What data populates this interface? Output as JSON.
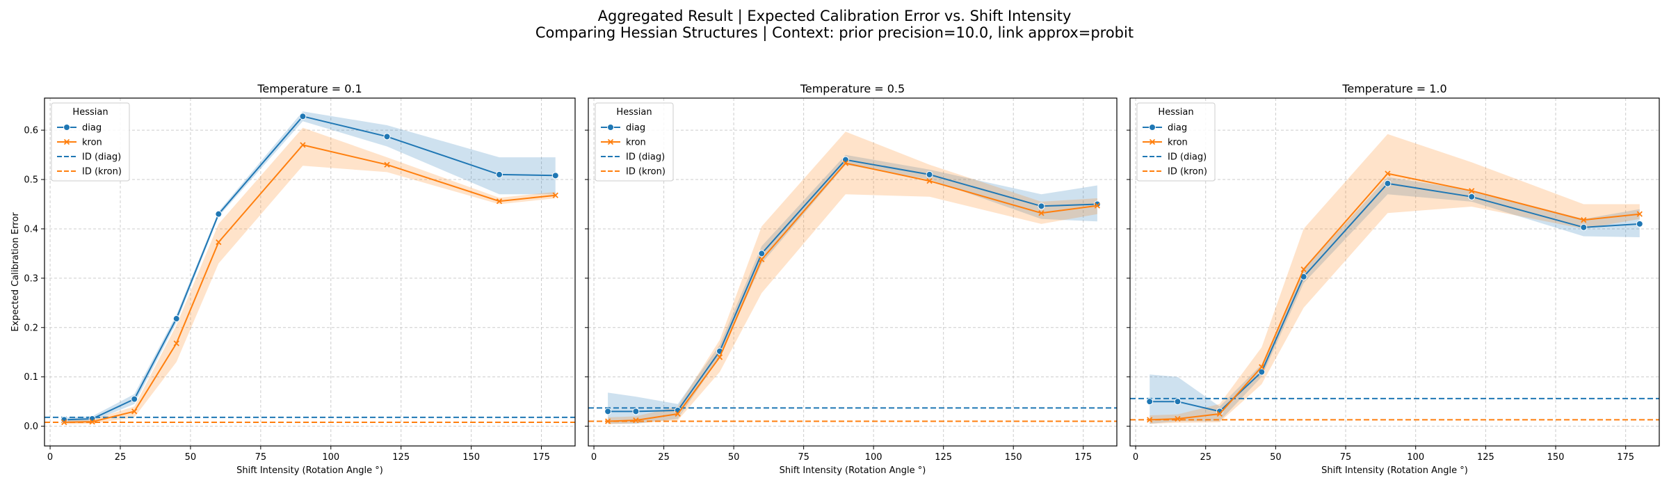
{
  "figure": {
    "title_line1": "Aggregated Result | Expected Calibration Error vs. Shift Intensity",
    "title_line2": "Comparing Hessian Structures | Context: prior precision=10.0, link approx=probit"
  },
  "colors": {
    "diag": "#1f77b4",
    "kron": "#ff7f0e",
    "grid": "#cccccc",
    "axis": "#000000"
  },
  "legend": {
    "title": "Hessian",
    "entries": [
      {
        "label": "diag",
        "style": "line-marker-circle",
        "color": "#1f77b4"
      },
      {
        "label": "kron",
        "style": "line-marker-x",
        "color": "#ff7f0e"
      },
      {
        "label": "ID (diag)",
        "style": "dashed",
        "color": "#1f77b4"
      },
      {
        "label": "ID (kron)",
        "style": "dashed",
        "color": "#ff7f0e"
      }
    ],
    "placement": "upper-left"
  },
  "chart_data": [
    {
      "type": "line",
      "title": "Temperature = 0.1",
      "xlabel": "Shift Intensity (Rotation Angle °)",
      "ylabel": "Expected Calibration Error",
      "xlim": [
        -2,
        187
      ],
      "ylim": [
        -0.04,
        0.665
      ],
      "xticks": [
        0,
        25,
        50,
        75,
        100,
        125,
        150,
        175
      ],
      "yticks": [
        0.0,
        0.1,
        0.2,
        0.3,
        0.4,
        0.5,
        0.6
      ],
      "grid": true,
      "x": [
        5,
        15,
        30,
        45,
        60,
        90,
        120,
        160,
        180
      ],
      "series": [
        {
          "name": "diag",
          "color": "#1f77b4",
          "marker": "circle",
          "values": [
            0.013,
            0.015,
            0.055,
            0.218,
            0.43,
            0.628,
            0.587,
            0.51,
            0.508
          ],
          "lower": [
            0.008,
            0.01,
            0.045,
            0.21,
            0.425,
            0.618,
            0.567,
            0.47,
            0.47
          ],
          "upper": [
            0.018,
            0.02,
            0.065,
            0.226,
            0.435,
            0.638,
            0.61,
            0.545,
            0.545
          ]
        },
        {
          "name": "kron",
          "color": "#ff7f0e",
          "marker": "x",
          "values": [
            0.008,
            0.009,
            0.03,
            0.168,
            0.373,
            0.57,
            0.53,
            0.456,
            0.468
          ],
          "lower": [
            0.004,
            0.005,
            0.018,
            0.13,
            0.33,
            0.528,
            0.515,
            0.45,
            0.462
          ],
          "upper": [
            0.012,
            0.013,
            0.04,
            0.205,
            0.41,
            0.605,
            0.545,
            0.463,
            0.475
          ]
        }
      ],
      "reference_lines": [
        {
          "name": "ID (diag)",
          "y": 0.018,
          "color": "#1f77b4"
        },
        {
          "name": "ID (kron)",
          "y": 0.008,
          "color": "#ff7f0e"
        }
      ]
    },
    {
      "type": "line",
      "title": "Temperature = 0.5",
      "xlabel": "Shift Intensity (Rotation Angle °)",
      "ylabel": "",
      "xlim": [
        -2,
        187
      ],
      "ylim": [
        -0.04,
        0.665
      ],
      "xticks": [
        0,
        25,
        50,
        75,
        100,
        125,
        150,
        175
      ],
      "yticks": [
        0.0,
        0.1,
        0.2,
        0.3,
        0.4,
        0.5,
        0.6
      ],
      "grid": true,
      "x": [
        5,
        15,
        30,
        45,
        60,
        90,
        120,
        160,
        180
      ],
      "series": [
        {
          "name": "diag",
          "color": "#1f77b4",
          "marker": "circle",
          "values": [
            0.03,
            0.03,
            0.032,
            0.152,
            0.35,
            0.54,
            0.51,
            0.446,
            0.45
          ],
          "lower": [
            0.005,
            0.005,
            0.015,
            0.14,
            0.33,
            0.53,
            0.5,
            0.42,
            0.415
          ],
          "upper": [
            0.068,
            0.06,
            0.045,
            0.165,
            0.365,
            0.55,
            0.52,
            0.47,
            0.488
          ]
        },
        {
          "name": "kron",
          "color": "#ff7f0e",
          "marker": "x",
          "values": [
            0.01,
            0.012,
            0.025,
            0.14,
            0.338,
            0.533,
            0.497,
            0.432,
            0.447
          ],
          "lower": [
            0.004,
            0.006,
            0.012,
            0.11,
            0.27,
            0.47,
            0.465,
            0.41,
            0.43
          ],
          "upper": [
            0.018,
            0.02,
            0.04,
            0.175,
            0.405,
            0.597,
            0.53,
            0.455,
            0.462
          ]
        }
      ],
      "reference_lines": [
        {
          "name": "ID (diag)",
          "y": 0.037,
          "color": "#1f77b4"
        },
        {
          "name": "ID (kron)",
          "y": 0.01,
          "color": "#ff7f0e"
        }
      ]
    },
    {
      "type": "line",
      "title": "Temperature = 1.0",
      "xlabel": "Shift Intensity (Rotation Angle °)",
      "ylabel": "",
      "xlim": [
        -2,
        187
      ],
      "ylim": [
        -0.04,
        0.665
      ],
      "xticks": [
        0,
        25,
        50,
        75,
        100,
        125,
        150,
        175
      ],
      "yticks": [
        0.0,
        0.1,
        0.2,
        0.3,
        0.4,
        0.5,
        0.6
      ],
      "grid": true,
      "x": [
        5,
        15,
        30,
        45,
        60,
        90,
        120,
        160,
        180
      ],
      "series": [
        {
          "name": "diag",
          "color": "#1f77b4",
          "marker": "circle",
          "values": [
            0.05,
            0.05,
            0.03,
            0.11,
            0.303,
            0.492,
            0.465,
            0.403,
            0.41
          ],
          "lower": [
            0.005,
            0.01,
            0.01,
            0.1,
            0.29,
            0.47,
            0.455,
            0.385,
            0.383
          ],
          "upper": [
            0.105,
            0.1,
            0.04,
            0.125,
            0.318,
            0.505,
            0.478,
            0.42,
            0.44
          ]
        },
        {
          "name": "kron",
          "color": "#ff7f0e",
          "marker": "x",
          "values": [
            0.013,
            0.015,
            0.025,
            0.12,
            0.318,
            0.512,
            0.477,
            0.418,
            0.43
          ],
          "lower": [
            0.005,
            0.007,
            0.008,
            0.085,
            0.24,
            0.432,
            0.445,
            0.4,
            0.42
          ],
          "upper": [
            0.022,
            0.024,
            0.045,
            0.16,
            0.4,
            0.592,
            0.535,
            0.45,
            0.45
          ]
        }
      ],
      "reference_lines": [
        {
          "name": "ID (diag)",
          "y": 0.056,
          "color": "#1f77b4"
        },
        {
          "name": "ID (kron)",
          "y": 0.013,
          "color": "#ff7f0e"
        }
      ]
    }
  ]
}
